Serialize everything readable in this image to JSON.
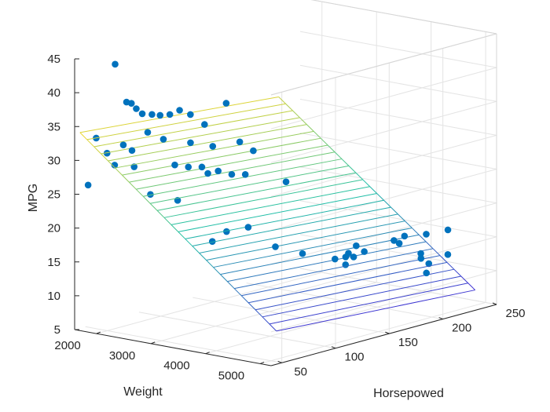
{
  "chart_data": {
    "type": "scatter",
    "title": "",
    "xlabel": "Weight",
    "ylabel": "Horsepowed",
    "zlabel": "MPG",
    "x_ticks": [
      "2000",
      "3000",
      "4000",
      "5000"
    ],
    "y_ticks": [
      "50",
      "100",
      "150",
      "200",
      "250"
    ],
    "z_ticks": [
      "5",
      "10",
      "15",
      "20",
      "25",
      "30",
      "35",
      "40",
      "45"
    ],
    "xlim": [
      1600,
      5200
    ],
    "ylim": [
      40,
      250
    ],
    "zlim": [
      5,
      45
    ],
    "grid": true,
    "colors": {
      "points": "#0072BD",
      "axes": "#262626",
      "grid": "#e4e4e4",
      "surface_low": "#3f2bd4",
      "surface_mid": "#21c0a6",
      "surface_high": "#f2d62a"
    },
    "surface": {
      "type": "mesh",
      "model": "MPG = b0 + b1*Weight + b2*Horsepowed",
      "weight_range": [
        1600,
        5200
      ],
      "horsepowed_range": [
        45,
        230
      ],
      "z_corners": {
        "w_min_hp_min": 33.9,
        "w_max_hp_min": 9.9,
        "w_min_hp_max": 31.2,
        "w_max_hp_max": 8.0
      }
    },
    "points": [
      {
        "x": 1850,
        "y": 65,
        "z": 43.5
      },
      {
        "x": 2000,
        "y": 68,
        "z": 38.0
      },
      {
        "x": 2050,
        "y": 70,
        "z": 37.8
      },
      {
        "x": 2100,
        "y": 72,
        "z": 37.0
      },
      {
        "x": 2150,
        "y": 75,
        "z": 36.2
      },
      {
        "x": 2230,
        "y": 80,
        "z": 36.0
      },
      {
        "x": 2300,
        "y": 84,
        "z": 35.8
      },
      {
        "x": 2400,
        "y": 88,
        "z": 35.9
      },
      {
        "x": 2500,
        "y": 92,
        "z": 36.5
      },
      {
        "x": 2600,
        "y": 97,
        "z": 35.8
      },
      {
        "x": 2800,
        "y": 100,
        "z": 34.5
      },
      {
        "x": 3000,
        "y": 110,
        "z": 37.5
      },
      {
        "x": 2250,
        "y": 75,
        "z": 33.6
      },
      {
        "x": 2400,
        "y": 82,
        "z": 32.5
      },
      {
        "x": 2700,
        "y": 92,
        "z": 32.0
      },
      {
        "x": 2950,
        "y": 100,
        "z": 31.5
      },
      {
        "x": 3150,
        "y": 115,
        "z": 31.8
      },
      {
        "x": 3300,
        "y": 120,
        "z": 30.5
      },
      {
        "x": 1700,
        "y": 55,
        "z": 32.8
      },
      {
        "x": 1800,
        "y": 60,
        "z": 30.5
      },
      {
        "x": 2000,
        "y": 65,
        "z": 31.8
      },
      {
        "x": 2100,
        "y": 68,
        "z": 31.0
      },
      {
        "x": 1900,
        "y": 62,
        "z": 28.8
      },
      {
        "x": 2100,
        "y": 70,
        "z": 28.5
      },
      {
        "x": 2550,
        "y": 85,
        "z": 28.8
      },
      {
        "x": 2700,
        "y": 90,
        "z": 28.5
      },
      {
        "x": 2850,
        "y": 95,
        "z": 28.5
      },
      {
        "x": 2900,
        "y": 98,
        "z": 27.5
      },
      {
        "x": 3050,
        "y": 100,
        "z": 28.0
      },
      {
        "x": 3200,
        "y": 105,
        "z": 27.5
      },
      {
        "x": 3350,
        "y": 110,
        "z": 27.5
      },
      {
        "x": 1650,
        "y": 50,
        "z": 26.0
      },
      {
        "x": 3900,
        "y": 120,
        "z": 26.8
      },
      {
        "x": 2300,
        "y": 75,
        "z": 24.5
      },
      {
        "x": 2700,
        "y": 80,
        "z": 24.0
      },
      {
        "x": 3400,
        "y": 90,
        "z": 20.0
      },
      {
        "x": 3600,
        "y": 100,
        "z": 20.5
      },
      {
        "x": 3100,
        "y": 92,
        "z": 18.0
      },
      {
        "x": 4000,
        "y": 105,
        "z": 18.0
      },
      {
        "x": 4300,
        "y": 115,
        "z": 17.0
      },
      {
        "x": 4600,
        "y": 130,
        "z": 16.0
      },
      {
        "x": 4650,
        "y": 140,
        "z": 16.5
      },
      {
        "x": 4500,
        "y": 145,
        "z": 15.5
      },
      {
        "x": 4400,
        "y": 150,
        "z": 14.0
      },
      {
        "x": 4450,
        "y": 155,
        "z": 15.0
      },
      {
        "x": 4300,
        "y": 165,
        "z": 16.0
      },
      {
        "x": 4350,
        "y": 170,
        "z": 15.0
      },
      {
        "x": 4500,
        "y": 190,
        "z": 16.0
      },
      {
        "x": 4400,
        "y": 200,
        "z": 15.0
      },
      {
        "x": 4300,
        "y": 210,
        "z": 15.5
      },
      {
        "x": 4600,
        "y": 215,
        "z": 16.0
      },
      {
        "x": 4800,
        "y": 225,
        "z": 16.5
      },
      {
        "x": 4700,
        "y": 205,
        "z": 13.0
      },
      {
        "x": 4500,
        "y": 215,
        "z": 13.0
      },
      {
        "x": 4450,
        "y": 225,
        "z": 11.0
      },
      {
        "x": 4700,
        "y": 230,
        "z": 12.5
      },
      {
        "x": 4800,
        "y": 205,
        "z": 11.0
      }
    ]
  }
}
